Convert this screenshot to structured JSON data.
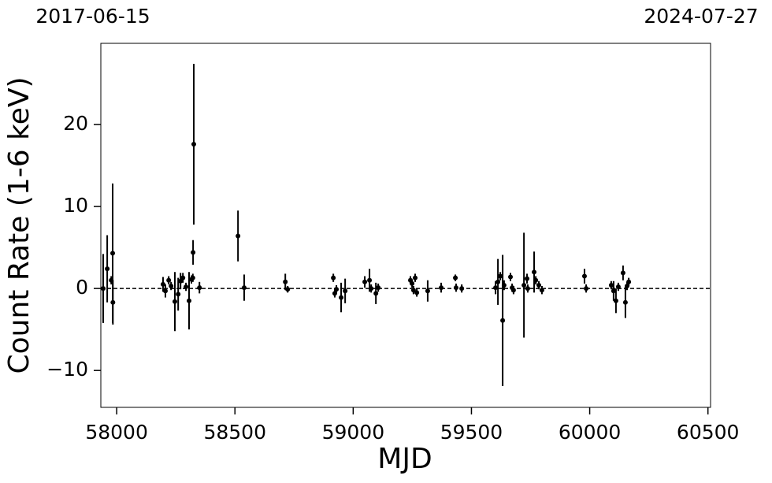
{
  "chart_data": {
    "type": "scatter",
    "xlabel": "MJD",
    "ylabel": "Count Rate (1-6 keV)",
    "annotations": [
      "2017-06-15",
      "2024-07-27"
    ],
    "color": "#000000",
    "reference_line": 0,
    "xlim": [
      57933,
      60511
    ],
    "ylim": [
      -14.5,
      29.9
    ],
    "xticks": [
      58000,
      58500,
      59000,
      59500,
      60000,
      60500
    ],
    "yticks": [
      {
        "value": -10,
        "label": "−10"
      },
      0,
      10,
      20
    ],
    "x": [
      57943,
      57960,
      57977,
      57983,
      57984,
      58196,
      58206,
      58220,
      58230,
      58246,
      58260,
      58270,
      58280,
      58293,
      58306,
      58316,
      58323,
      58326,
      58322,
      58350,
      58513,
      58539,
      58713,
      58723,
      58916,
      58922,
      58929,
      58949,
      58966,
      59049,
      59069,
      59076,
      59096,
      59106,
      59242,
      59249,
      59255,
      59262,
      59269,
      59315,
      59372,
      59432,
      59435,
      59459,
      59602,
      59612,
      59622,
      59632,
      59638,
      59665,
      59672,
      59678,
      59722,
      59735,
      59738,
      59765,
      59772,
      59785,
      59798,
      59978,
      59985,
      60091,
      60101,
      60111,
      60121,
      60141,
      60151,
      60158,
      60165
    ],
    "values": [
      0,
      2.4,
      1.0,
      4.3,
      -1.7,
      0.5,
      -0.3,
      1.0,
      0.3,
      -1.6,
      -0.7,
      0.9,
      1.3,
      0.2,
      -1.5,
      1.1,
      4.4,
      17.6,
      1.3,
      0.1,
      6.4,
      0.1,
      0.8,
      -0.1,
      1.3,
      -0.6,
      -0.1,
      -1.1,
      -0.3,
      0.8,
      1.0,
      0,
      -0.6,
      0.1,
      1.0,
      0.6,
      -0.2,
      1.3,
      -0.5,
      -0.3,
      0.1,
      1.3,
      0.1,
      0,
      0.1,
      0.8,
      1.5,
      -3.9,
      0.4,
      1.4,
      0.1,
      -0.2,
      0.4,
      1.2,
      0,
      2.0,
      1.0,
      0.4,
      -0.2,
      1.5,
      0,
      0.4,
      -0.3,
      -1.5,
      0.2,
      1.9,
      -1.7,
      0.3,
      0.8
    ],
    "errors": [
      4.2,
      4.1,
      0.5,
      8.5,
      2.7,
      0.9,
      0.8,
      0.5,
      0.5,
      3.6,
      2.0,
      1.0,
      0.6,
      0.5,
      3.5,
      0.5,
      1.5,
      9.8,
      0.5,
      0.7,
      3.1,
      1.6,
      1.0,
      0.4,
      0.5,
      0.5,
      0.5,
      1.8,
      1.5,
      0.7,
      1.4,
      0.5,
      1.3,
      0.5,
      0.5,
      0.5,
      0.5,
      0.5,
      0.5,
      1.3,
      0.6,
      0.4,
      0.5,
      0.5,
      0.8,
      2.8,
      0.5,
      8.0,
      0.6,
      0.5,
      0.5,
      0.5,
      6.4,
      0.6,
      0.5,
      2.5,
      0.5,
      0.5,
      0.5,
      0.9,
      0.5,
      0.5,
      1.2,
      1.5,
      0.5,
      0.9,
      1.9,
      0.5,
      0.5
    ]
  }
}
